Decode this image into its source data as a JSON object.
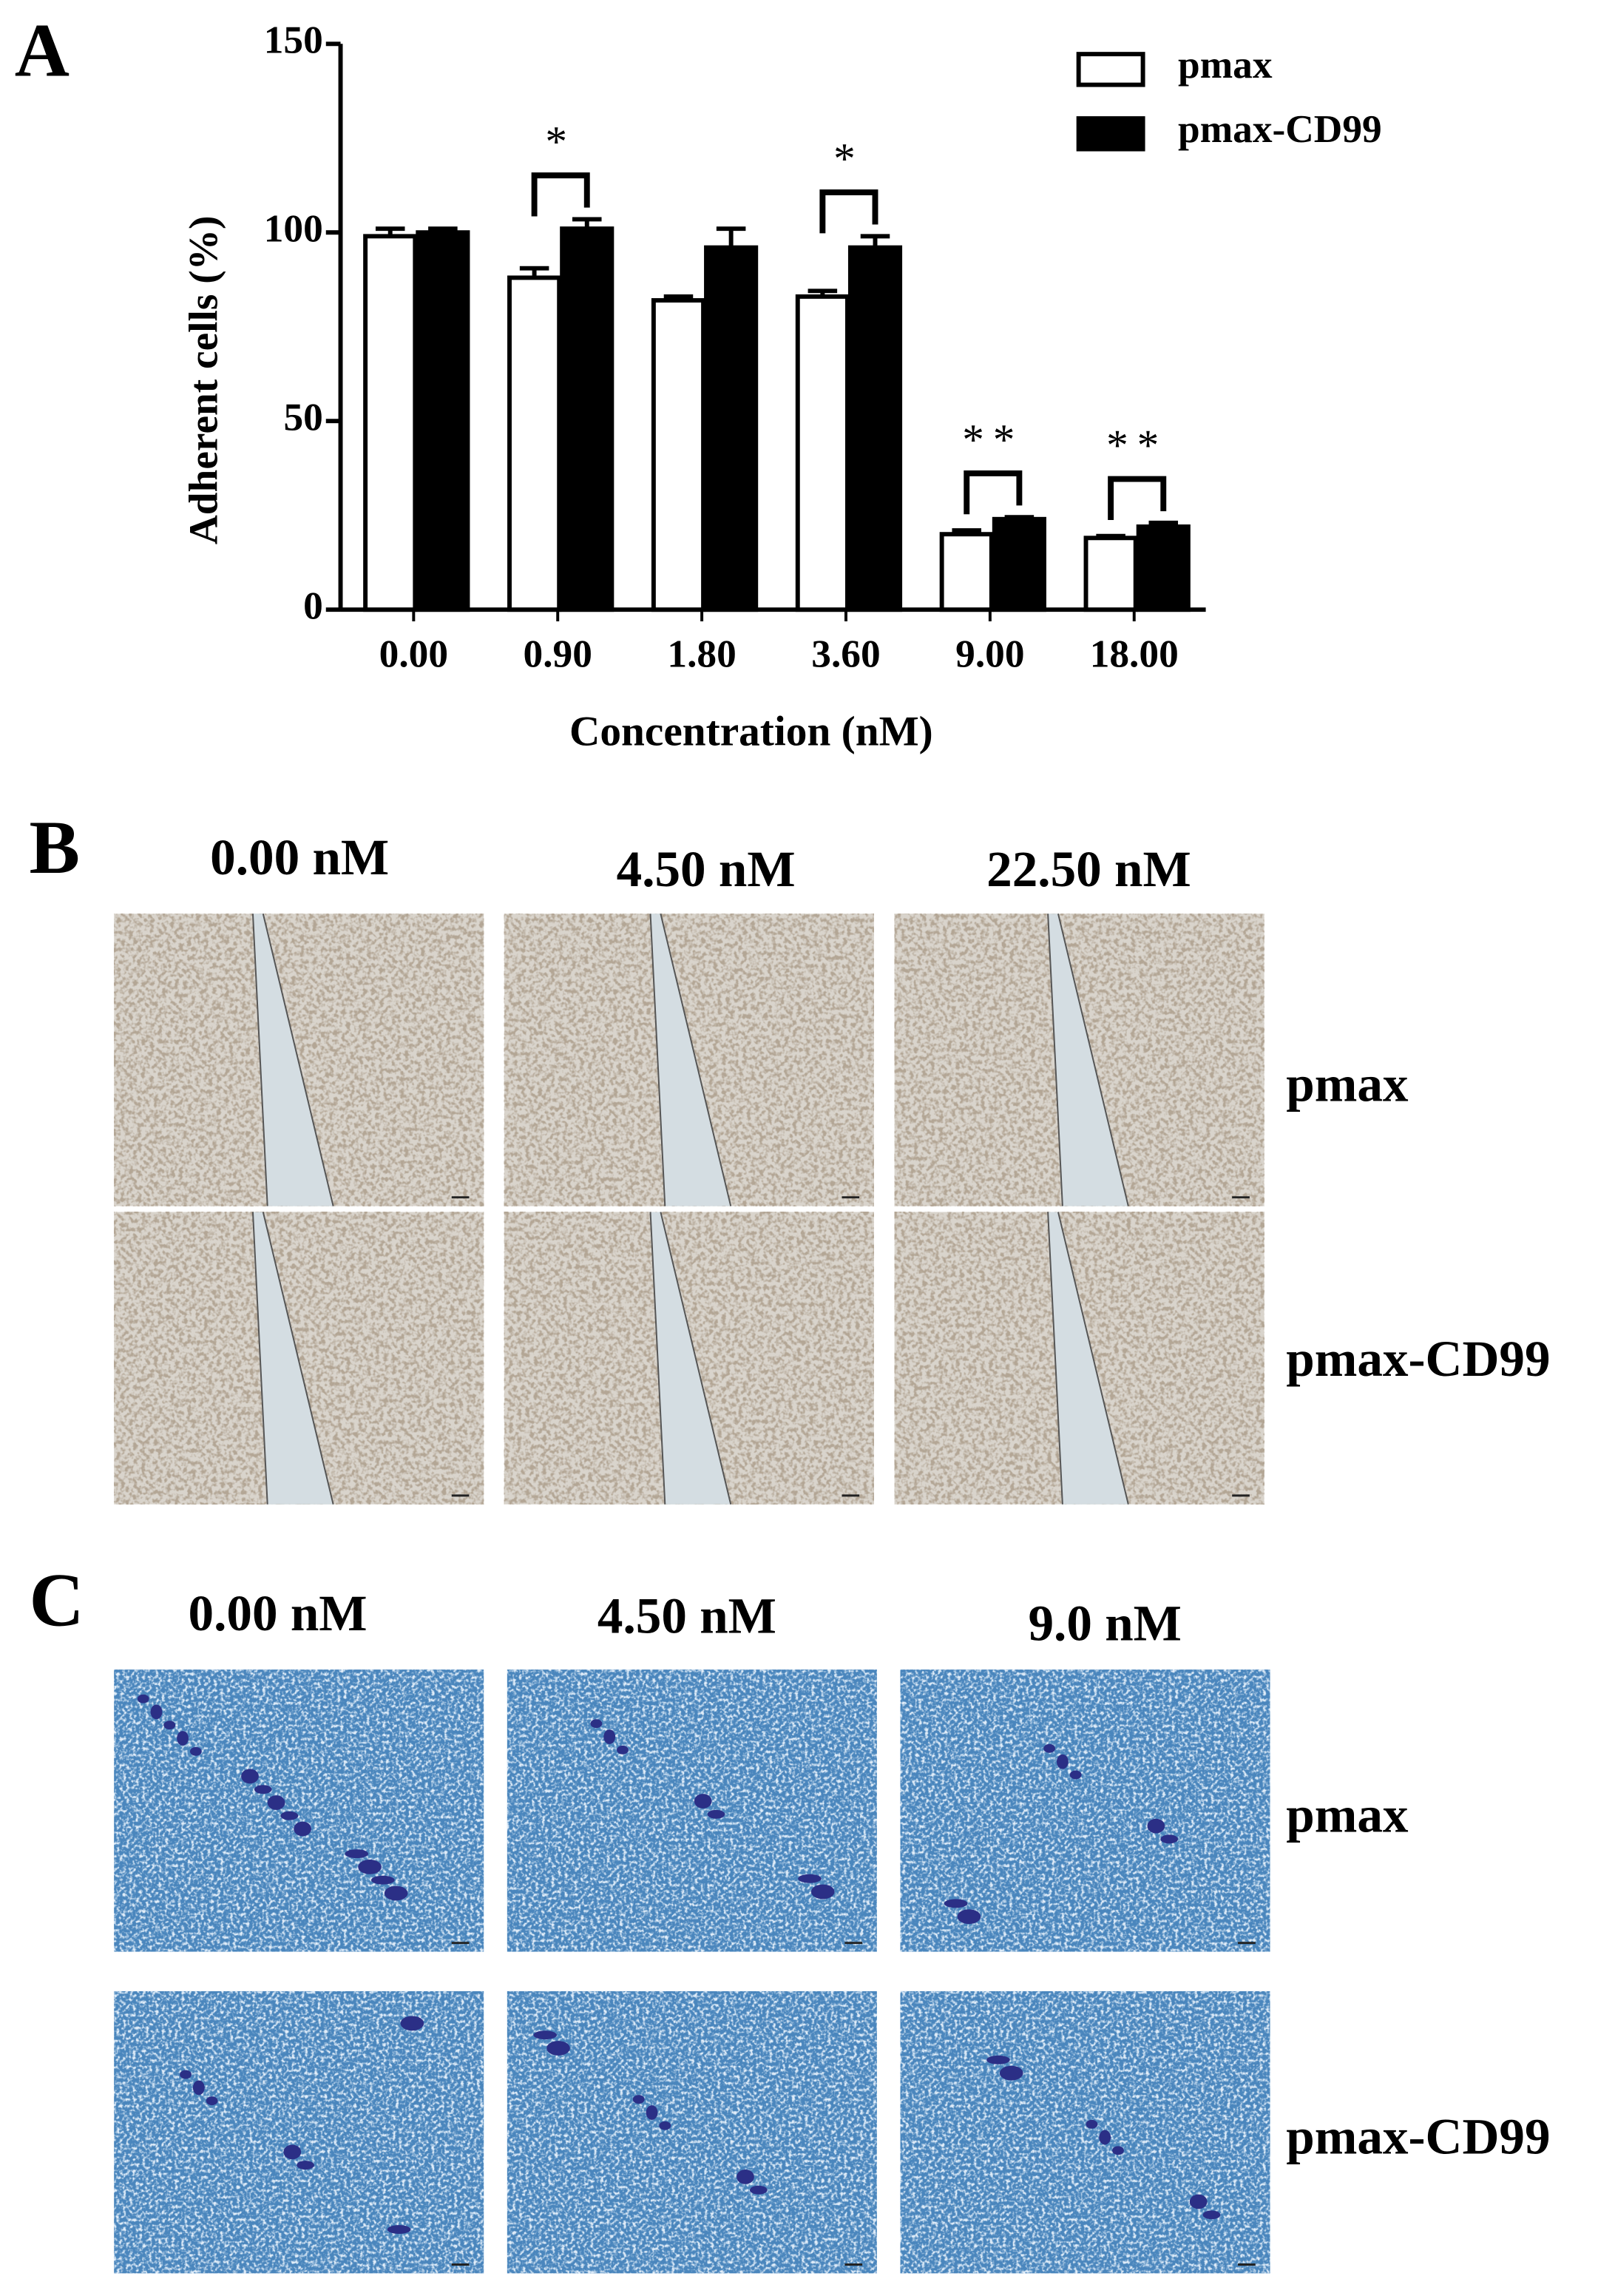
{
  "chart_data": {
    "type": "bar",
    "panel_label": "A",
    "x_label": "Concentration (nM)",
    "y_label": "Adherent cells (%)",
    "categories": [
      "0.00",
      "0.90",
      "1.80",
      "3.60",
      "9.00",
      "18.00"
    ],
    "series": [
      {
        "name": "pmax",
        "color": "#ffffff",
        "values": [
          99,
          88,
          82,
          83,
          20,
          19
        ],
        "errors": [
          2,
          2.5,
          1,
          1.5,
          1,
          0.5
        ]
      },
      {
        "name": "pmax-CD99",
        "color": "#000000",
        "values": [
          100,
          101,
          96,
          96,
          24,
          22
        ],
        "errors": [
          1,
          2.5,
          5,
          3,
          0.5,
          1
        ]
      }
    ],
    "significance": [
      null,
      "*",
      null,
      "*",
      "**",
      "**"
    ],
    "ylim": [
      0,
      150
    ],
    "yticks": [
      0,
      50,
      100,
      150
    ],
    "legend": "top-right"
  },
  "panel_b": {
    "label": "B",
    "columns": [
      "0.00 nM",
      "4.50 nM",
      "22.50 nM"
    ],
    "rows": [
      "pmax",
      "pmax-CD99"
    ]
  },
  "panel_c": {
    "label": "C",
    "columns": [
      "0.00 nM",
      "4.50 nM",
      "9.0 nM"
    ],
    "rows": [
      "pmax",
      "pmax-CD99"
    ]
  }
}
